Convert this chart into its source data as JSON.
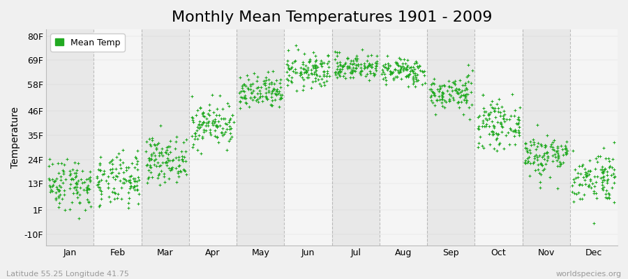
{
  "title": "Monthly Mean Temperatures 1901 - 2009",
  "ylabel": "Temperature",
  "subtitle_left": "Latitude 55.25 Longitude 41.75",
  "subtitle_right": "worldspecies.org",
  "legend_label": "Mean Temp",
  "ytick_labels": [
    "-10F",
    "1F",
    "13F",
    "24F",
    "35F",
    "46F",
    "58F",
    "69F",
    "80F"
  ],
  "ytick_values": [
    -10,
    1,
    13,
    24,
    35,
    46,
    58,
    69,
    80
  ],
  "ylim": [
    -15,
    83
  ],
  "month_names": [
    "Jan",
    "Feb",
    "Mar",
    "Apr",
    "May",
    "Jun",
    "Jul",
    "Aug",
    "Sep",
    "Oct",
    "Nov",
    "Dec"
  ],
  "background_color": "#f0f0f0",
  "plot_bg_odd": "#e8e8e8",
  "plot_bg_even": "#f5f5f5",
  "dot_color": "#22aa22",
  "dot_size": 8,
  "num_years": 109,
  "monthly_mean_F": [
    13,
    14,
    24,
    40,
    54,
    64,
    66,
    64,
    54,
    40,
    26,
    16
  ],
  "monthly_std_F": [
    6,
    6,
    5,
    5,
    4,
    4,
    3,
    3,
    4,
    5,
    5,
    6
  ],
  "seed": 42,
  "title_fontsize": 16,
  "axis_label_fontsize": 10,
  "tick_fontsize": 9,
  "legend_fontsize": 9,
  "grid_color": "#999999",
  "grid_style": "--",
  "grid_alpha": 0.6,
  "grid_linewidth": 0.8
}
